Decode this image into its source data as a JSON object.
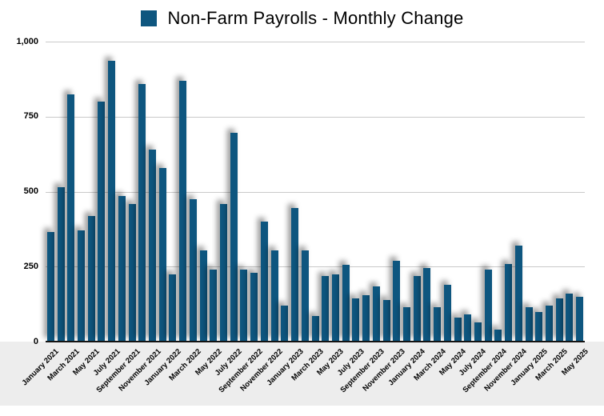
{
  "chart_data": {
    "type": "bar",
    "title": "Non-Farm Payrolls - Monthly Change",
    "legend": {
      "position": "top",
      "series": "Non-Farm Payrolls - Monthly Change"
    },
    "bar_color": "#0e567f",
    "grid": true,
    "ylim": [
      0,
      1000
    ],
    "yticks": [
      0,
      250,
      500,
      750,
      1000
    ],
    "ytick_labels": [
      "0",
      "250",
      "500",
      "750",
      "1,000"
    ],
    "x_tick_step": 2,
    "categories": [
      "January 2021",
      "February 2021",
      "March 2021",
      "April 2021",
      "May 2021",
      "June 2021",
      "July 2021",
      "August 2021",
      "September 2021",
      "October 2021",
      "November 2021",
      "December 2021",
      "January 2022",
      "February 2022",
      "March 2022",
      "April 2022",
      "May 2022",
      "June 2022",
      "July 2022",
      "August 2022",
      "September 2022",
      "October 2022",
      "November 2022",
      "December 2022",
      "January 2023",
      "February 2023",
      "March 2023",
      "April 2023",
      "May 2023",
      "June 2023",
      "July 2023",
      "August 2023",
      "September 2023",
      "October 2023",
      "November 2023",
      "December 2023",
      "January 2024",
      "February 2024",
      "March 2024",
      "April 2024",
      "May 2024",
      "June 2024",
      "July 2024",
      "August 2024",
      "September 2024",
      "October 2024",
      "November 2024",
      "December 2024",
      "January 2025",
      "February 2025",
      "March 2025",
      "April 2025",
      "May 2025"
    ],
    "values": [
      365,
      515,
      825,
      370,
      420,
      800,
      935,
      485,
      460,
      860,
      640,
      580,
      225,
      870,
      475,
      305,
      240,
      460,
      695,
      240,
      230,
      400,
      305,
      120,
      445,
      305,
      85,
      220,
      225,
      255,
      145,
      155,
      185,
      140,
      270,
      115,
      220,
      245,
      115,
      190,
      80,
      90,
      65,
      240,
      40,
      260,
      320,
      115,
      100,
      120,
      145,
      160,
      150
    ]
  }
}
